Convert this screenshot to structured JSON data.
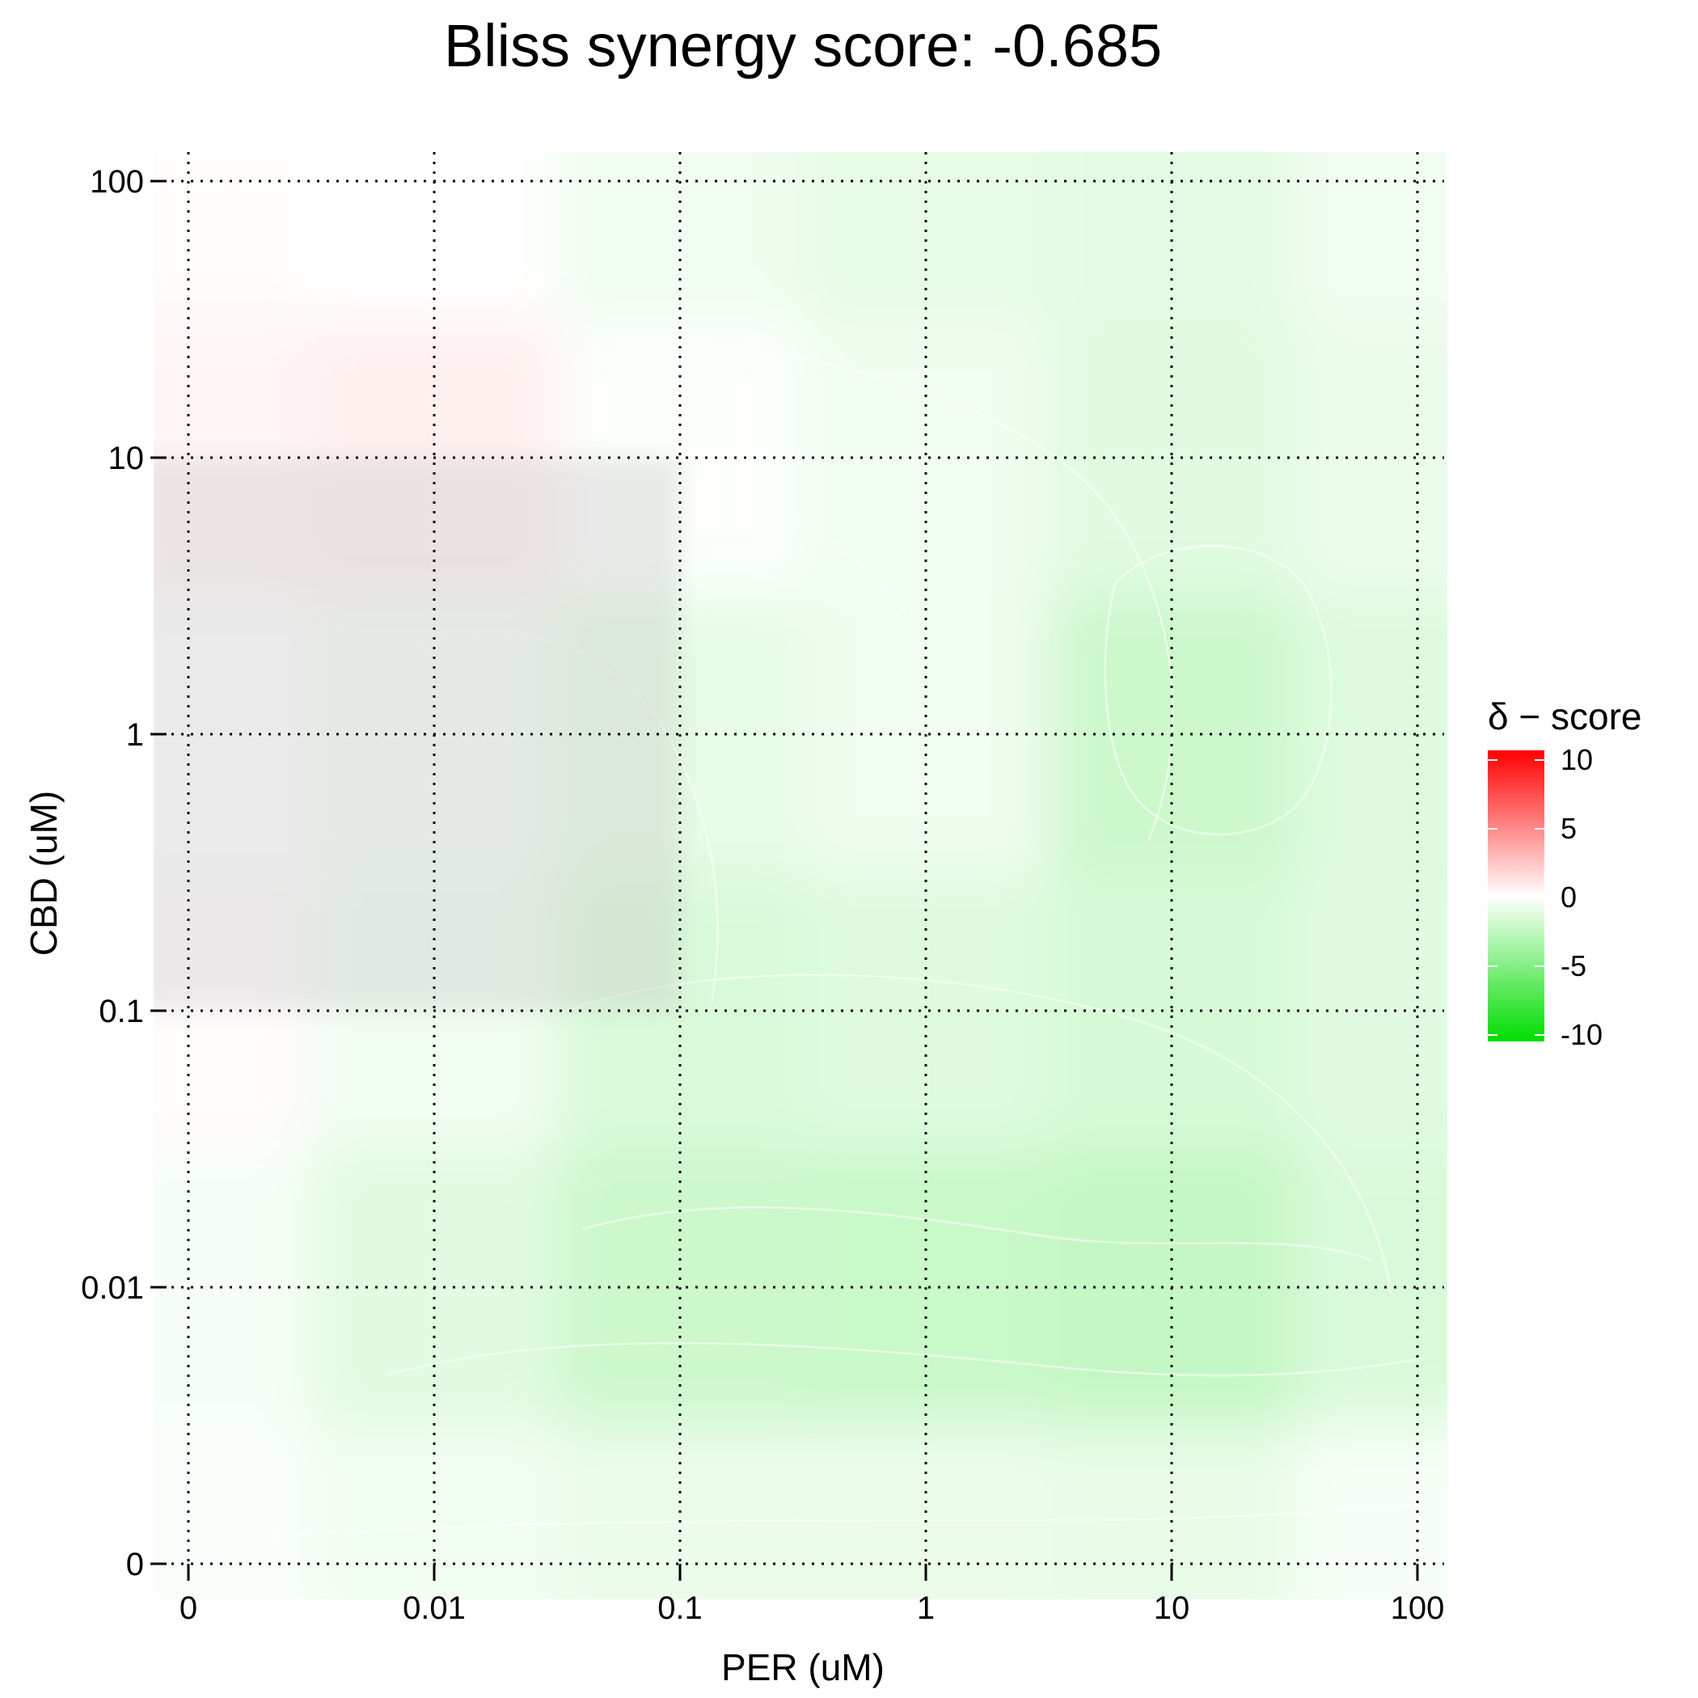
{
  "chart_data": {
    "type": "heatmap",
    "title": "Bliss synergy score: -0.685",
    "xlabel": "PER (uM)",
    "ylabel": "CBD (uM)",
    "x_ticks": [
      "0",
      "0.01",
      "0.1",
      "1",
      "10",
      "100"
    ],
    "y_ticks": [
      "0",
      "0.01",
      "0.1",
      "1",
      "10",
      "100"
    ],
    "grid": "dotted",
    "legend": {
      "title": "δ − score",
      "ticks": [
        "10",
        "5",
        "0",
        "-5",
        "-10"
      ],
      "values": [
        10,
        5,
        0,
        -5,
        -10
      ],
      "range": [
        -10,
        10
      ],
      "colors": {
        "high": "#ff0000",
        "mid": "#ffffff",
        "low": "#00dd00"
      },
      "placement": "right"
    },
    "x_doses": [
      0,
      0.01,
      0.1,
      1,
      10,
      100
    ],
    "y_doses": [
      0,
      0.01,
      0.1,
      1,
      10,
      100
    ],
    "z": [
      [
        -0.2,
        -0.5,
        -0.8,
        -0.8,
        -0.9,
        -0.3
      ],
      [
        -0.3,
        -1.2,
        -2.0,
        -2.1,
        -2.3,
        -1.5
      ],
      [
        0.1,
        -0.5,
        -1.5,
        -1.3,
        -1.6,
        -1.2
      ],
      [
        0.0,
        -0.4,
        -1.0,
        -0.6,
        -2.0,
        -1.3
      ],
      [
        0.4,
        0.6,
        -0.1,
        -0.6,
        -1.2,
        -0.8
      ],
      [
        0.1,
        0.0,
        -0.6,
        -1.0,
        -1.1,
        -0.5
      ]
    ],
    "mask": {
      "x_range": [
        0,
        0.1
      ],
      "y_range": [
        0.1,
        10
      ],
      "color": "#c8c8c8",
      "opacity": 0.38
    }
  }
}
